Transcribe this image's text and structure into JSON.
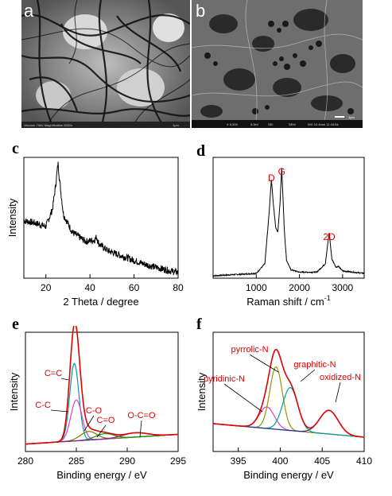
{
  "figure": {
    "panels": {
      "a": {
        "letter": "a",
        "caption": "Vacuum 70kV Magnification 8000x",
        "scale_label": "1μm"
      },
      "b": {
        "letter": "b",
        "info": [
          "X 6,000",
          "5.0kV",
          "SEI",
          "SEM",
          "WD 10.4mm 11:34:54"
        ],
        "scale_label": "1μm"
      },
      "c": {
        "letter": "c"
      },
      "d": {
        "letter": "d"
      },
      "e": {
        "letter": "e"
      },
      "f": {
        "letter": "f"
      }
    },
    "colors": {
      "annotation": "#e00000",
      "data_line": "#000000"
    }
  },
  "chart_data": [
    {
      "panel": "c",
      "type": "line",
      "xlabel": "2 Theta / degree",
      "ylabel": "Intensity",
      "xlim": [
        10,
        80
      ],
      "xticks": [
        20,
        40,
        60,
        80
      ],
      "peaks": [
        {
          "x": 25.5,
          "height": 0.58
        },
        {
          "x": 43,
          "height": 0.1
        }
      ],
      "series": [
        {
          "color": "#000000",
          "x": [
            10,
            15,
            20,
            23,
            24.5,
            25.5,
            26.5,
            28,
            32,
            38,
            42,
            43,
            44,
            48,
            55,
            65,
            75,
            80
          ],
          "y": [
            0.5,
            0.48,
            0.45,
            0.6,
            0.82,
            1.0,
            0.8,
            0.55,
            0.4,
            0.32,
            0.33,
            0.36,
            0.3,
            0.24,
            0.19,
            0.12,
            0.07,
            0.05
          ]
        }
      ]
    },
    {
      "panel": "d",
      "type": "line",
      "xlabel": "Raman shift / cm",
      "xlabel_sup": "-1",
      "ylabel": "",
      "xlim": [
        0,
        3500
      ],
      "xticks": [
        1000,
        2000,
        3000
      ],
      "annotations": [
        {
          "text": "D",
          "x": 1350
        },
        {
          "text": "G",
          "x": 1590
        },
        {
          "text": "2D",
          "x": 2690
        }
      ],
      "series": [
        {
          "color": "#000000",
          "x": [
            0,
            500,
            1000,
            1200,
            1300,
            1350,
            1400,
            1450,
            1500,
            1550,
            1590,
            1650,
            1700,
            1800,
            2000,
            2400,
            2600,
            2690,
            2750,
            2850,
            2900,
            3000,
            3500
          ],
          "y": [
            0.02,
            0.03,
            0.04,
            0.12,
            0.55,
            0.82,
            0.6,
            0.42,
            0.38,
            0.62,
            0.92,
            0.4,
            0.15,
            0.07,
            0.05,
            0.05,
            0.12,
            0.38,
            0.16,
            0.09,
            0.1,
            0.06,
            0.04
          ]
        }
      ]
    },
    {
      "panel": "e",
      "type": "line",
      "xlabel": "Binding energy / eV",
      "ylabel": "Intensity",
      "xlim": [
        280,
        295
      ],
      "xticks": [
        280,
        285,
        290,
        295
      ],
      "annotations": [
        "C=C",
        "C-C",
        "C-O",
        "C=O",
        "O-C=O"
      ],
      "series": [
        {
          "name": "C=C",
          "color": "#00a0a0",
          "center": 284.8,
          "height": 0.72,
          "width": 0.45
        },
        {
          "name": "C-C",
          "color": "#e040c0",
          "center": 285.0,
          "height": 0.38,
          "width": 0.55
        },
        {
          "name": "C-O",
          "color": "#7a7a00",
          "center": 286.2,
          "height": 0.08,
          "width": 0.8
        },
        {
          "name": "C=O",
          "color": "#00a000",
          "center": 287.8,
          "height": 0.05,
          "width": 0.9
        },
        {
          "name": "O-C=O",
          "color": "#8a1aa0",
          "center": 290.8,
          "height": 0.04,
          "width": 1.2
        }
      ]
    },
    {
      "panel": "f",
      "type": "line",
      "xlabel": "Binding energy / eV",
      "ylabel": "Intensity",
      "xlim": [
        392,
        410
      ],
      "xticks": [
        395,
        400,
        405,
        410
      ],
      "annotations": [
        "pyrrolic-N",
        "pyridinic-N",
        "graphitic-N",
        "oxidized-N"
      ],
      "series": [
        {
          "name": "pyridinic-N",
          "color": "#e040c0",
          "center": 398.4,
          "height": 0.2,
          "width": 0.9
        },
        {
          "name": "pyrrolic-N",
          "color": "#a09000",
          "center": 399.5,
          "height": 0.58,
          "width": 0.75
        },
        {
          "name": "graphitic-N",
          "color": "#00a0a0",
          "center": 401.2,
          "height": 0.4,
          "width": 0.9
        },
        {
          "name": "oxidized-N",
          "color": "#1a3aa0",
          "center": 405.8,
          "height": 0.22,
          "width": 1.1
        }
      ]
    }
  ]
}
